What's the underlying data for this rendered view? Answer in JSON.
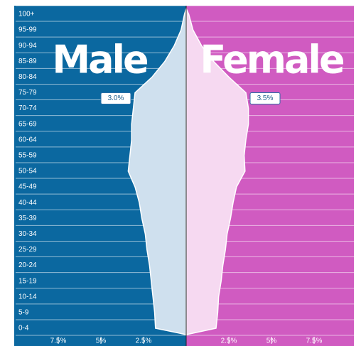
{
  "chart_data": {
    "type": "pyramid",
    "categories": [
      "0-4",
      "5-9",
      "10-14",
      "15-19",
      "20-24",
      "25-29",
      "30-34",
      "35-39",
      "40-44",
      "45-49",
      "50-54",
      "55-59",
      "60-64",
      "65-69",
      "70-74",
      "75-79",
      "80-84",
      "85-89",
      "90-94",
      "95-99",
      "100+"
    ],
    "series": [
      {
        "name": "Male",
        "color": "#0b68a0",
        "fill": "#cfe0ee",
        "values": [
          1.8,
          1.85,
          1.95,
          2.05,
          2.15,
          2.3,
          2.4,
          2.6,
          2.75,
          3.0,
          3.4,
          3.3,
          3.2,
          3.2,
          3.1,
          3.0,
          2.0,
          1.25,
          0.7,
          0.3,
          0.1
        ],
        "value_labels": [
          null,
          null,
          null,
          null,
          null,
          null,
          null,
          null,
          null,
          null,
          null,
          null,
          null,
          null,
          null,
          "3.0%",
          null,
          null,
          null,
          null,
          null
        ]
      },
      {
        "name": "Female",
        "color": "#d05bc1",
        "fill": "#f6d9f1",
        "values": [
          1.75,
          1.85,
          1.9,
          2.05,
          2.15,
          2.3,
          2.4,
          2.6,
          2.75,
          2.95,
          3.45,
          3.4,
          3.5,
          3.65,
          3.65,
          3.5,
          2.5,
          1.6,
          0.9,
          0.4,
          0.15
        ],
        "value_labels": [
          null,
          null,
          null,
          null,
          null,
          null,
          null,
          null,
          null,
          null,
          null,
          null,
          null,
          null,
          null,
          "3.5%",
          null,
          null,
          null,
          null,
          null
        ]
      }
    ],
    "xlim": [
      -10,
      10
    ],
    "xticks": [
      {
        "value": -7.5,
        "label": "7.5%"
      },
      {
        "value": -5,
        "label": "5%"
      },
      {
        "value": -2.5,
        "label": "2.5%"
      },
      {
        "value": 2.5,
        "label": "2.5%"
      },
      {
        "value": 5,
        "label": "5%"
      },
      {
        "value": 7.5,
        "label": "7.5%"
      }
    ]
  }
}
